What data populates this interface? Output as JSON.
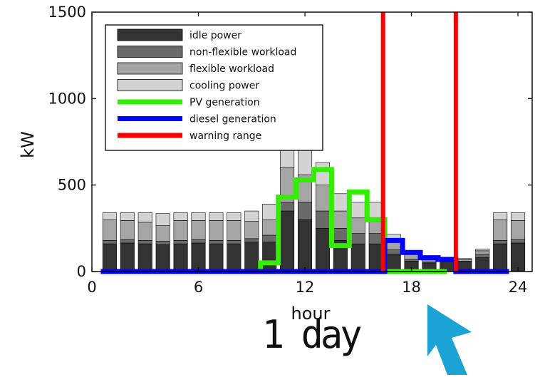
{
  "chart_data": {
    "type": "bar",
    "xlabel": "hour",
    "ylabel": "kW",
    "xlim": [
      0,
      24.8
    ],
    "ylim": [
      0,
      1500
    ],
    "xticks": [
      0,
      6,
      12,
      18,
      24
    ],
    "yticks": [
      0,
      500,
      1000,
      1500
    ],
    "hours": [
      1,
      2,
      3,
      4,
      5,
      6,
      7,
      8,
      9,
      10,
      11,
      12,
      13,
      14,
      15,
      16,
      17,
      18,
      19,
      20,
      21,
      22,
      23,
      24
    ],
    "bar_series": [
      {
        "name": "idle power",
        "color": "#333333",
        "values": [
          160,
          165,
          160,
          155,
          160,
          165,
          160,
          160,
          170,
          170,
          350,
          300,
          250,
          180,
          160,
          160,
          100,
          60,
          50,
          55,
          55,
          80,
          160,
          165
        ]
      },
      {
        "name": "non-flexible workload",
        "color": "#6a6a6a",
        "values": [
          20,
          20,
          20,
          20,
          20,
          20,
          20,
          20,
          20,
          40,
          50,
          100,
          100,
          70,
          60,
          60,
          25,
          10,
          5,
          5,
          5,
          20,
          20,
          20
        ]
      },
      {
        "name": "flexible workload",
        "color": "#a5a5a5",
        "values": [
          120,
          110,
          105,
          90,
          115,
          110,
          115,
          115,
          100,
          90,
          200,
          160,
          150,
          100,
          90,
          90,
          60,
          30,
          15,
          10,
          10,
          20,
          120,
          110
        ]
      },
      {
        "name": "cooling power",
        "color": "#d3d3d3",
        "values": [
          40,
          45,
          55,
          70,
          45,
          45,
          45,
          45,
          60,
          90,
          130,
          160,
          130,
          100,
          90,
          90,
          30,
          10,
          5,
          5,
          5,
          10,
          40,
          45
        ]
      }
    ],
    "line_series": [
      {
        "name": "PV generation",
        "color": "#33ee00",
        "points": [
          [
            8.5,
            0
          ],
          [
            9.5,
            0
          ],
          [
            9.5,
            50
          ],
          [
            10.5,
            50
          ],
          [
            10.5,
            430
          ],
          [
            11.5,
            430
          ],
          [
            11.5,
            530
          ],
          [
            12.5,
            530
          ],
          [
            12.5,
            590
          ],
          [
            13.5,
            590
          ],
          [
            13.5,
            150
          ],
          [
            14.5,
            150
          ],
          [
            14.5,
            460
          ],
          [
            15.5,
            460
          ],
          [
            15.5,
            300
          ],
          [
            16.5,
            300
          ],
          [
            16.5,
            0
          ],
          [
            20,
            0
          ]
        ]
      },
      {
        "name": "diesel generation",
        "color": "#0000ff",
        "points": [
          [
            0.5,
            0
          ],
          [
            16.5,
            0
          ],
          [
            16.5,
            180
          ],
          [
            17.5,
            180
          ],
          [
            17.5,
            110
          ],
          [
            18.5,
            110
          ],
          [
            18.5,
            80
          ],
          [
            19.5,
            80
          ],
          [
            19.5,
            70
          ],
          [
            20.5,
            70
          ],
          [
            20.5,
            0
          ],
          [
            23.5,
            0
          ]
        ]
      }
    ],
    "vertical_lines": [
      {
        "name": "warning range",
        "color": "#ff0000",
        "x": [
          16.4,
          20.5
        ]
      }
    ],
    "legend": {
      "placement": "top-left",
      "entries": [
        "idle power",
        "non-flexible workload",
        "flexible workload",
        "cooling power",
        "PV generation",
        "diesel generation",
        "warning range"
      ]
    }
  },
  "annotation": {
    "caption": "1 day",
    "arrow_color": "#1aa3d4"
  }
}
